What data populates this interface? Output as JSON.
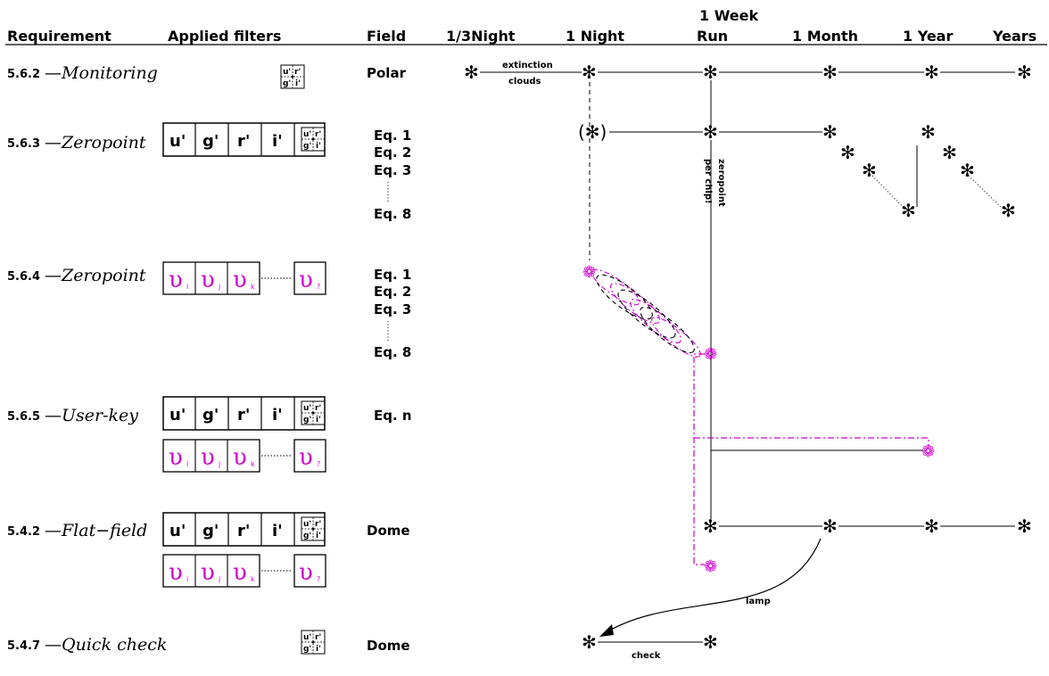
{
  "headers": {
    "requirement": "Requirement",
    "applied_filters": "Applied filters",
    "field": "Field",
    "third_night": "1/3Night",
    "night": "1 Night",
    "week_top": "1 Week",
    "week_bottom": "Run",
    "month": "1 Month",
    "year": "1 Year",
    "years": "Years"
  },
  "requirements": [
    {
      "num": "5.6.2",
      "dash": "—",
      "name": "Monitoring"
    },
    {
      "num": "5.6.3",
      "dash": "—",
      "name": "Zeropoint"
    },
    {
      "num": "5.6.4",
      "dash": "—",
      "name": "Zeropoint"
    },
    {
      "num": "5.6.5",
      "dash": "—",
      "name": "User-key"
    },
    {
      "num": "5.4.2",
      "dash": "—",
      "name": "Flat−field"
    },
    {
      "num": "5.4.7",
      "dash": "—",
      "name": "Quick check"
    }
  ],
  "filters": {
    "u": "u'",
    "g": "g'",
    "r": "r'",
    "i": "i'",
    "nu": "υ",
    "nu_i": "i",
    "nu_j": "j",
    "nu_k": "k",
    "nu_q": "?"
  },
  "fields": {
    "polar": "Polar",
    "eq1": "Eq. 1",
    "eq2": "Eq. 2",
    "eq3": "Eq. 3",
    "eq8": "Eq. 8",
    "eqn": "Eq. n",
    "dome": "Dome"
  },
  "labels": {
    "extinction": "extinction",
    "clouds": "clouds",
    "zeropoint": "zeropoint",
    "per_chip": "per chip!",
    "lamp": "lamp",
    "check": "check",
    "paren_star": "(✻)",
    "star": "✻",
    "m_star": "❁"
  }
}
